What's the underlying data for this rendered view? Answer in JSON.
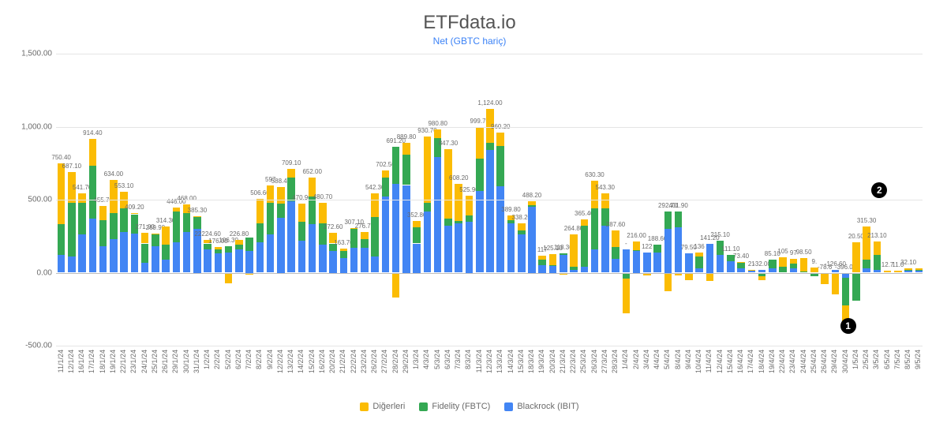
{
  "title": "ETFdata.io",
  "subtitle": "Net (GBTC hariç)",
  "title_fontsize": 24,
  "title_color": "#555555",
  "subtitle_fontsize": 12,
  "subtitle_color": "#3b82f6",
  "background_color": "#ffffff",
  "grid_color": "#e5e5e5",
  "zero_line_color": "#bdbdbd",
  "text_color": "#6b6b6b",
  "label_fontsize": 8,
  "tick_fontsize": 10,
  "ylim": [
    -500,
    1500
  ],
  "yticks": [
    -500,
    0,
    500,
    1000,
    1500
  ],
  "ytick_labels": [
    "-500.00",
    "0.00",
    "500.00",
    "1,000.00",
    "1,500.00"
  ],
  "series": [
    {
      "key": "ibit",
      "label": "Blackrock (IBIT)",
      "color": "#4285f4"
    },
    {
      "key": "fbtc",
      "label": "Fidelity (FBTC)",
      "color": "#34a853"
    },
    {
      "key": "others",
      "label": "Diğerleri",
      "color": "#fbbc04"
    }
  ],
  "legend_order": [
    "others",
    "fbtc",
    "ibit"
  ],
  "bar_width_ratio": 0.72,
  "callouts": [
    {
      "id": "1",
      "near_date": "30/4/24",
      "y": -420
    },
    {
      "id": "2",
      "near_date": "3/5/24",
      "y": 510
    }
  ],
  "data": [
    {
      "date": "11/1/24",
      "total": 750.4,
      "ibit": 120,
      "fbtc": 210,
      "others": 420.4
    },
    {
      "date": "12/1/24",
      "total": 687.1,
      "ibit": 110,
      "fbtc": 370,
      "others": 207.1
    },
    {
      "date": "16/1/24",
      "total": 541.7,
      "ibit": 260,
      "fbtc": 220,
      "others": 61.7
    },
    {
      "date": "17/1/24",
      "total": 914.4,
      "ibit": 370,
      "fbtc": 360,
      "others": 184.4
    },
    {
      "date": "18/1/24",
      "total": 455.7,
      "ibit": 180,
      "fbtc": 180,
      "others": 95.7
    },
    {
      "date": "19/1/24",
      "total": 634.0,
      "ibit": 230,
      "fbtc": 180,
      "others": 224.0
    },
    {
      "date": "22/1/24",
      "total": 553.1,
      "ibit": 280,
      "fbtc": 160,
      "others": 113.1
    },
    {
      "date": "23/1/24",
      "total": 409.2,
      "ibit": 270,
      "fbtc": 130,
      "others": 9.2
    },
    {
      "date": "24/1/24",
      "total": 271.0,
      "ibit": 70,
      "fbtc": 130,
      "others": 71.0
    },
    {
      "date": "25/1/24",
      "total": 269.9,
      "ibit": 180,
      "fbtc": 80,
      "others": 9.9
    },
    {
      "date": "26/1/24",
      "total": 314.3,
      "ibit": 90,
      "fbtc": 100,
      "others": 124.3
    },
    {
      "date": "29/1/24",
      "total": 446.0,
      "ibit": 210,
      "fbtc": 210,
      "others": 26.0
    },
    {
      "date": "30/1/24",
      "total": 468.0,
      "ibit": 280,
      "fbtc": 130,
      "others": 58.0
    },
    {
      "date": "31/1/24",
      "total": 385.3,
      "ibit": 300,
      "fbtc": 80,
      "others": 5.3
    },
    {
      "date": "1/2/24",
      "total": 224.6,
      "ibit": 160,
      "fbtc": 40,
      "others": 24.6,
      "label_prefix": "22"
    },
    {
      "date": "2/2/24",
      "total": 176.0,
      "ibit": 130,
      "fbtc": 30,
      "others": 16.0
    },
    {
      "date": "5/2/24",
      "total": 106.3,
      "ibit": 140,
      "fbtc": 40,
      "others": -73.7
    },
    {
      "date": "6/2/24",
      "total": 226.8,
      "ibit": 160,
      "fbtc": 30,
      "others": 36.8
    },
    {
      "date": "7/2/24",
      "total": 226.8,
      "ibit": 150,
      "fbtc": 90,
      "others": -13.2,
      "hide_label": true
    },
    {
      "date": "8/2/24",
      "total": 506.6,
      "ibit": 210,
      "fbtc": 130,
      "others": 166.6
    },
    {
      "date": "9/2/24",
      "total": 597.0,
      "ibit": 260,
      "fbtc": 220,
      "others": 117.0,
      "label_override": "597"
    },
    {
      "date": "12/2/24",
      "total": 588.4,
      "ibit": 375,
      "fbtc": 100,
      "others": 113.4
    },
    {
      "date": "13/2/24",
      "total": 709.1,
      "ibit": 490,
      "fbtc": 160,
      "others": 59.1
    },
    {
      "date": "14/2/24",
      "total": 470.9,
      "ibit": 220,
      "fbtc": 130,
      "others": 120.9
    },
    {
      "date": "15/2/24",
      "total": 652.0,
      "ibit": 330,
      "fbtc": 190,
      "others": 132.0
    },
    {
      "date": "16/2/24",
      "total": 480.7,
      "ibit": 190,
      "fbtc": 150,
      "others": 140.7
    },
    {
      "date": "20/2/24",
      "total": 272.6,
      "ibit": 150,
      "fbtc": 50,
      "others": 72.6
    },
    {
      "date": "21/2/24",
      "total": 163.7,
      "ibit": 100,
      "fbtc": 50,
      "others": 13.7
    },
    {
      "date": "22/2/24",
      "total": 307.1,
      "ibit": 170,
      "fbtc": 130,
      "others": 7.1
    },
    {
      "date": "23/2/24",
      "total": 276.7,
      "ibit": 170,
      "fbtc": 60,
      "others": 46.7
    },
    {
      "date": "26/2/24",
      "total": 542.3,
      "ibit": 110,
      "fbtc": 270,
      "others": 162.3
    },
    {
      "date": "27/2/24",
      "total": 702.5,
      "ibit": 520,
      "fbtc": 130,
      "others": 52.5
    },
    {
      "date": "28/2/24",
      "total": 691.2,
      "ibit": 610,
      "fbtc": 250,
      "others": -168.8
    },
    {
      "date": "29/2/24",
      "total": 889.8,
      "ibit": 600,
      "fbtc": 210,
      "others": 79.8
    },
    {
      "date": "1/3/24",
      "total": 352.8,
      "ibit": 200,
      "fbtc": 110,
      "others": 42.8
    },
    {
      "date": "4/3/24",
      "total": 930.7,
      "ibit": 420,
      "fbtc": 60,
      "others": 450.7
    },
    {
      "date": "5/3/24",
      "total": 980.8,
      "ibit": 790,
      "fbtc": 130,
      "others": 60.8
    },
    {
      "date": "6/3/24",
      "total": 847.3,
      "ibit": 320,
      "fbtc": 50,
      "others": 477.3
    },
    {
      "date": "7/3/24",
      "total": 608.2,
      "ibit": 340,
      "fbtc": 13,
      "others": 255.2
    },
    {
      "date": "8/3/24",
      "total": 525.9,
      "ibit": 350,
      "fbtc": 40,
      "others": 135.9
    },
    {
      "date": "11/3/24",
      "total": 999.7,
      "ibit": 560,
      "fbtc": 220,
      "others": 219.7
    },
    {
      "date": "12/3/24",
      "total": 1124.0,
      "ibit": 840,
      "fbtc": 50,
      "others": 234.0,
      "label_override": "1,124.00"
    },
    {
      "date": "13/3/24",
      "total": 960.2,
      "ibit": 590,
      "fbtc": 280,
      "others": 90.2
    },
    {
      "date": "14/3/24",
      "total": 389.8,
      "ibit": 340,
      "fbtc": 20,
      "others": 29.8
    },
    {
      "date": "15/3/24",
      "total": 338.2,
      "ibit": 260,
      "fbtc": 30,
      "others": 48.2
    },
    {
      "date": "18/3/24",
      "total": 488.2,
      "ibit": 450,
      "fbtc": 10,
      "others": 28.2
    },
    {
      "date": "19/3/24",
      "total": 117.0,
      "ibit": 50,
      "fbtc": 40,
      "others": 27.0,
      "label_override": "117"
    },
    {
      "date": "20/3/24",
      "total": 125.1,
      "ibit": 50,
      "fbtc": 2,
      "others": 73.1
    },
    {
      "date": "21/3/24",
      "total": 118.3,
      "ibit": 120,
      "fbtc": 10,
      "others": -11.7
    },
    {
      "date": "22/3/24",
      "total": 264.8,
      "ibit": 20,
      "fbtc": 20,
      "others": 224.8
    },
    {
      "date": "25/3/24",
      "total": 365.4,
      "ibit": 40,
      "fbtc": 280,
      "others": 45.4
    },
    {
      "date": "26/3/24",
      "total": 630.3,
      "ibit": 160,
      "fbtc": 280,
      "others": 190.3
    },
    {
      "date": "27/3/24",
      "total": 543.3,
      "ibit": 320,
      "fbtc": 120,
      "others": 103.3
    },
    {
      "date": "28/3/24",
      "total": 287.6,
      "ibit": 95,
      "fbtc": 80,
      "others": 112.6
    },
    {
      "date": "1/4/24",
      "total": -120.0,
      "ibit": 160,
      "fbtc": -40,
      "others": -240.0,
      "label_override": "-"
    },
    {
      "date": "2/4/24",
      "total": 216.0,
      "ibit": 150,
      "fbtc": 6,
      "others": 60.0
    },
    {
      "date": "3/4/24",
      "total": 122.0,
      "ibit": 140,
      "fbtc": 0,
      "others": -18.0,
      "label_override": "122"
    },
    {
      "date": "4/4/24",
      "total": 188.6,
      "ibit": 140,
      "fbtc": 50,
      "others": -1.4
    },
    {
      "date": "5/4/24",
      "total": 292.7,
      "ibit": 300,
      "fbtc": 120,
      "others": -127.3
    },
    {
      "date": "8/4/24",
      "total": 401.9,
      "ibit": 310,
      "fbtc": 110,
      "others": -18.1
    },
    {
      "date": "9/4/24",
      "total": 79.5,
      "ibit": 130,
      "fbtc": 0,
      "others": -50.5
    },
    {
      "date": "10/4/24",
      "total": 136.0,
      "ibit": 30,
      "fbtc": 80,
      "others": 26.0,
      "label_override": "136"
    },
    {
      "date": "11/4/24",
      "total": 141.2,
      "ibit": 200,
      "fbtc": 0,
      "others": -58.8
    },
    {
      "date": "12/4/24",
      "total": 215.1,
      "ibit": 120,
      "fbtc": 100,
      "others": -4.9
    },
    {
      "date": "15/4/24",
      "total": 111.1,
      "ibit": 80,
      "fbtc": 40,
      "others": -8.9
    },
    {
      "date": "16/4/24",
      "total": 73.4,
      "ibit": 30,
      "fbtc": 40,
      "others": 3.4
    },
    {
      "date": "17/4/24",
      "total": 21.0,
      "ibit": 20,
      "fbtc": 0,
      "others": 1.0,
      "label_override": "21"
    },
    {
      "date": "18/4/24",
      "total": -32.0,
      "ibit": 20,
      "fbtc": -25,
      "others": -27.0
    },
    {
      "date": "19/4/24",
      "total": 85.1,
      "ibit": 30,
      "fbtc": 60,
      "others": -4.9
    },
    {
      "date": "22/4/24",
      "total": 105.0,
      "ibit": 0,
      "fbtc": 40,
      "others": 65.0,
      "label_override": "105"
    },
    {
      "date": "23/4/24",
      "total": 97.0,
      "ibit": 30,
      "fbtc": 30,
      "others": 37.0,
      "label_override": "97"
    },
    {
      "date": "24/4/24",
      "total": 98.5,
      "ibit": 0,
      "fbtc": 6,
      "others": 92.5
    },
    {
      "date": "25/4/24",
      "total": 9.0,
      "ibit": 0,
      "fbtc": -25,
      "others": 34.0,
      "label_override": "9."
    },
    {
      "date": "26/4/24",
      "total": -78.6,
      "ibit": 0,
      "fbtc": 0,
      "others": -78.6,
      "label_override": "-78.6"
    },
    {
      "date": "29/4/24",
      "total": -126.6,
      "ibit": 20,
      "fbtc": -6,
      "others": -140.6,
      "label_override": "-126.60"
    },
    {
      "date": "30/4/24",
      "total": -396.0,
      "ibit": -35,
      "fbtc": -190,
      "others": -171.0,
      "label_override": "-396.00"
    },
    {
      "date": "1/5/24",
      "total": 20.5,
      "ibit": 0,
      "fbtc": -190,
      "others": 210.5
    },
    {
      "date": "2/5/24",
      "total": 315.3,
      "ibit": 30,
      "fbtc": 60,
      "others": 225.3
    },
    {
      "date": "3/5/24",
      "total": 213.1,
      "ibit": 18,
      "fbtc": 105,
      "others": 90.1
    },
    {
      "date": "6/5/24",
      "total": 12.7,
      "ibit": 0,
      "fbtc": 0,
      "others": 12.7,
      "label_override": "12.7"
    },
    {
      "date": "7/5/24",
      "total": 11.0,
      "ibit": 0,
      "fbtc": 0,
      "others": 11.0,
      "label_override": "11.0"
    },
    {
      "date": "8/5/24",
      "total": 32.1,
      "ibit": 15,
      "fbtc": 3,
      "others": 14.1
    },
    {
      "date": "9/5/24",
      "total": 32.1,
      "ibit": 15,
      "fbtc": 3,
      "others": 14.1,
      "hide_label": true
    }
  ]
}
